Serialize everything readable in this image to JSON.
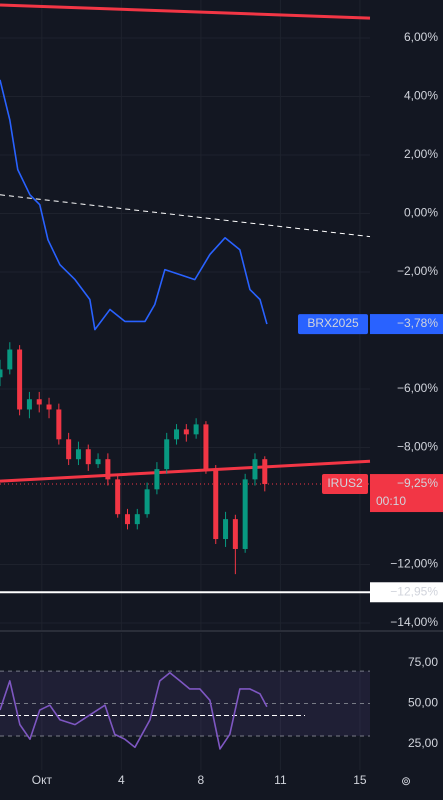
{
  "chart_data": [
    {
      "type": "line",
      "xlim": [
        -1.58,
        12.38
      ],
      "xticks": [
        {
          "value": 0,
          "label": "Окт"
        },
        {
          "value": 3,
          "label": "4"
        },
        {
          "value": 6,
          "label": "8"
        },
        {
          "value": 9,
          "label": "11"
        },
        {
          "value": 12,
          "label": "15"
        }
      ],
      "ylim": [
        -14.24,
        7.3
      ],
      "yticks": [
        {
          "value": 6,
          "label": "6,00%"
        },
        {
          "value": 4,
          "label": "4,00%"
        },
        {
          "value": 2,
          "label": "2,00%"
        },
        {
          "value": 0,
          "label": "0,00%"
        },
        {
          "value": -2,
          "label": "−2,00%"
        },
        {
          "value": -6,
          "label": "−6,00%"
        },
        {
          "value": -8,
          "label": "−8,00%"
        },
        {
          "value": -12,
          "label": "−12,00%"
        },
        {
          "value": -14,
          "label": "−14,00%"
        }
      ],
      "grid": true,
      "series": [
        {
          "name": "BRX2025",
          "color": "#2962ff",
          "x": [
            -1.58,
            -1.21,
            -0.91,
            -0.45,
            -0.08,
            0.23,
            0.68,
            1.25,
            1.81,
            2.0,
            2.57,
            3.13,
            3.89,
            4.26,
            4.64,
            5.21,
            5.77,
            6.34,
            6.91,
            7.47,
            7.85,
            8.23,
            8.49
          ],
          "values": [
            4.57,
            3.2,
            1.5,
            0.64,
            0.3,
            -0.9,
            -1.75,
            -2.26,
            -2.94,
            -3.97,
            -3.28,
            -3.69,
            -3.69,
            -3.11,
            -1.92,
            -2.09,
            -2.26,
            -1.4,
            -0.83,
            -1.24,
            -2.6,
            -2.94,
            -3.78
          ],
          "last": {
            "value": -3.78,
            "label": "−3,78%"
          }
        }
      ],
      "candles": {
        "name": "IRUS2",
        "up_color": "#089981",
        "down_color": "#f23645",
        "tag_color": "#f23645",
        "x": [
          -1.58,
          -1.21,
          -0.84,
          -0.47,
          -0.1,
          0.27,
          0.64,
          1.01,
          1.38,
          1.75,
          2.12,
          2.49,
          2.86,
          3.23,
          3.6,
          3.97,
          4.34,
          4.71,
          5.08,
          5.45,
          5.82,
          6.19,
          6.56,
          6.93,
          7.3,
          7.67,
          8.04,
          8.41
        ],
        "open": [
          -5.6,
          -5.33,
          -4.65,
          -6.7,
          -6.35,
          -6.53,
          -6.7,
          -7.72,
          -8.4,
          -8.06,
          -8.57,
          -8.4,
          -9.09,
          -10.28,
          -10.62,
          -10.28,
          -9.43,
          -8.74,
          -7.72,
          -7.38,
          -7.55,
          -7.21,
          -8.74,
          -11.13,
          -10.45,
          -11.47,
          -9.09,
          -8.4
        ],
        "high": [
          -5.0,
          -4.4,
          -4.5,
          -6.1,
          -6.1,
          -6.3,
          -6.5,
          -7.5,
          -7.8,
          -7.9,
          -8.2,
          -8.2,
          -8.9,
          -10.1,
          -10.1,
          -9.2,
          -8.5,
          -7.5,
          -7.2,
          -7.2,
          -7.0,
          -7.1,
          -8.6,
          -10.2,
          -10.3,
          -8.9,
          -8.2,
          -8.3
        ],
        "low": [
          -5.9,
          -5.5,
          -6.9,
          -7.0,
          -6.8,
          -7.0,
          -7.9,
          -8.6,
          -8.6,
          -8.8,
          -8.7,
          -9.3,
          -10.4,
          -10.8,
          -10.8,
          -10.4,
          -9.6,
          -8.9,
          -7.9,
          -7.8,
          -7.7,
          -8.9,
          -11.3,
          -11.4,
          -12.33,
          -11.6,
          -9.3,
          -9.5
        ],
        "close": [
          -5.33,
          -4.65,
          -6.7,
          -6.35,
          -6.53,
          -6.7,
          -7.72,
          -8.4,
          -8.06,
          -8.57,
          -8.4,
          -9.09,
          -10.28,
          -10.62,
          -10.28,
          -9.43,
          -8.74,
          -7.72,
          -7.38,
          -7.55,
          -7.21,
          -8.74,
          -11.13,
          -10.45,
          -11.47,
          -9.09,
          -8.4,
          -9.25
        ],
        "last": {
          "value": -9.25,
          "label": "−9,25%"
        },
        "timer": "00:10"
      },
      "trendlines": [
        {
          "color": "#f23645",
          "x": [
            -1.58,
            12.38
          ],
          "values": [
            7.13,
            6.68
          ]
        },
        {
          "color": "#f23645",
          "x": [
            -1.58,
            12.38
          ],
          "values": [
            -9.15,
            -8.47
          ]
        },
        {
          "color": "#ffffff",
          "dashed": true,
          "x": [
            -1.58,
            12.38
          ],
          "values": [
            0.64,
            -0.79
          ]
        }
      ],
      "hline": {
        "value": -12.95,
        "label": "−12,95%",
        "color": "#ffffff"
      }
    },
    {
      "type": "line",
      "ylim": [
        9,
        92.3
      ],
      "yticks": [
        {
          "value": 75,
          "label": "75,00"
        },
        {
          "value": 50,
          "label": "50,00"
        },
        {
          "value": 25,
          "label": "25,00"
        }
      ],
      "band": [
        30,
        70
      ],
      "levels": [
        70,
        50,
        30
      ],
      "signal_level": 42.6,
      "series": [
        {
          "color": "#7e57c2",
          "x": [
            -1.58,
            -1.21,
            -0.83,
            -0.45,
            -0.08,
            0.3,
            0.68,
            1.25,
            1.81,
            2.38,
            2.75,
            3.13,
            3.51,
            4.08,
            4.45,
            4.83,
            5.21,
            5.58,
            5.96,
            6.34,
            6.72,
            7.09,
            7.47,
            7.85,
            8.23,
            8.49
          ],
          "values": [
            46,
            64,
            37,
            28,
            46,
            49,
            40,
            37,
            43,
            49,
            31,
            28,
            23,
            40,
            64,
            69,
            64,
            59,
            59,
            52,
            22,
            31,
            59,
            59,
            56,
            48
          ]
        }
      ]
    }
  ]
}
